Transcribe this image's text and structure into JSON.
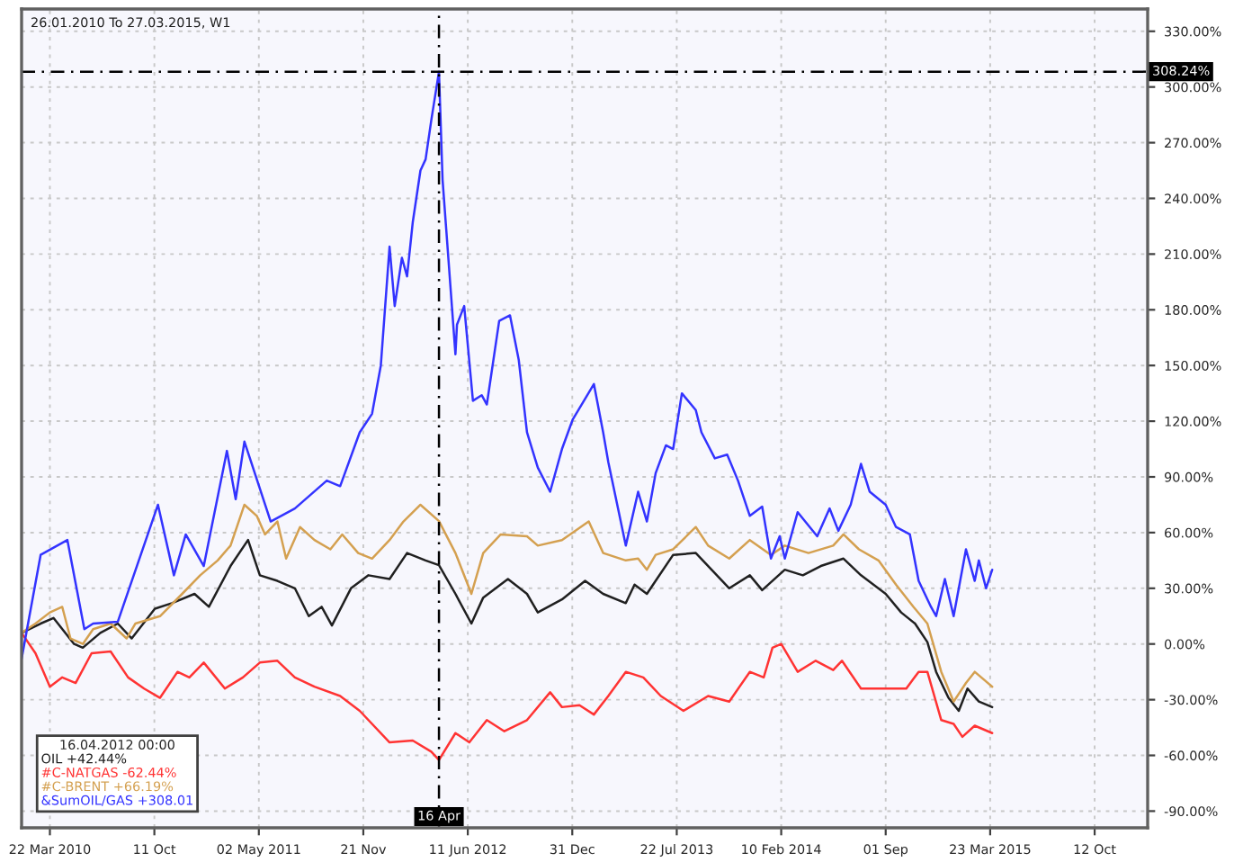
{
  "chart_data": {
    "type": "line",
    "title": "26.01.2010 To 27.03.2015, W1",
    "legend_title": "16.04.2012 00:00",
    "legend": "bottom left",
    "grid": true,
    "xlim": [
      "2010-01-26",
      "2016-01-23"
    ],
    "ylim": [
      -99,
      342
    ],
    "xticks": [
      {
        "value": "2010-03-22",
        "label": "22 Mar 2010"
      },
      {
        "value": "2010-10-11",
        "label": "11 Oct"
      },
      {
        "value": "2011-05-02",
        "label": "02 May 2011"
      },
      {
        "value": "2011-11-21",
        "label": "21 Nov"
      },
      {
        "value": "2012-06-11",
        "label": "11 Jun 2012"
      },
      {
        "value": "2012-12-31",
        "label": "31 Dec"
      },
      {
        "value": "2013-07-22",
        "label": "22 Jul 2013"
      },
      {
        "value": "2014-02-10",
        "label": "10 Feb 2014"
      },
      {
        "value": "2014-09-01",
        "label": "01 Sep"
      },
      {
        "value": "2015-03-23",
        "label": "23 Mar 2015"
      },
      {
        "value": "2015-10-12",
        "label": "12 Oct"
      }
    ],
    "yticks": [
      {
        "value": -90,
        "label": "-90.00%"
      },
      {
        "value": -60,
        "label": "-60.00%"
      },
      {
        "value": -30,
        "label": "-30.00%"
      },
      {
        "value": 0,
        "label": "0.00%"
      },
      {
        "value": 30,
        "label": "30.00%"
      },
      {
        "value": 60,
        "label": "60.00%"
      },
      {
        "value": 90,
        "label": "90.00%"
      },
      {
        "value": 120,
        "label": "120.00%"
      },
      {
        "value": 150,
        "label": "150.00%"
      },
      {
        "value": 180,
        "label": "180.00%"
      },
      {
        "value": 210,
        "label": "210.00%"
      },
      {
        "value": 240,
        "label": "240.00%"
      },
      {
        "value": 270,
        "label": "270.00%"
      },
      {
        "value": 300,
        "label": "300.00%"
      },
      {
        "value": 330,
        "label": "330.00%"
      }
    ],
    "ref_lines": [
      {
        "axis": "x",
        "value": "2012-04-16",
        "label": "16 Apr",
        "color": "#000000",
        "line_style": "dashed"
      },
      {
        "axis": "y",
        "value": 308.24,
        "label": "308.24%",
        "color": "#000000",
        "line_style": "dashed"
      }
    ],
    "series": [
      {
        "name": "OIL +42.44%",
        "color": "#202020",
        "x": [
          "2010-01-26",
          "2010-03-04",
          "2010-03-29",
          "2010-05-08",
          "2010-05-25",
          "2010-06-28",
          "2010-08-01",
          "2010-08-28",
          "2010-10-12",
          "2010-11-14",
          "2010-12-28",
          "2011-01-25",
          "2011-03-08",
          "2011-04-11",
          "2011-05-04",
          "2011-06-07",
          "2011-07-11",
          "2011-08-07",
          "2011-09-01",
          "2011-09-21",
          "2011-10-28",
          "2011-12-01",
          "2012-01-11",
          "2012-02-14",
          "2012-03-21",
          "2012-04-16",
          "2012-05-18",
          "2012-06-18",
          "2012-07-11",
          "2012-08-28",
          "2012-10-04",
          "2012-10-25",
          "2012-12-11",
          "2013-01-25",
          "2013-03-01",
          "2013-04-14",
          "2013-05-01",
          "2013-05-25",
          "2013-06-11",
          "2013-07-15",
          "2013-08-28",
          "2013-11-01",
          "2013-12-11",
          "2014-01-04",
          "2014-02-17",
          "2014-03-24",
          "2014-04-28",
          "2014-06-11",
          "2014-07-15",
          "2014-09-01",
          "2014-10-01",
          "2014-10-28",
          "2014-11-21",
          "2014-12-08",
          "2015-01-01",
          "2015-01-21",
          "2015-02-07",
          "2015-03-01",
          "2015-03-27"
        ],
        "values": [
          6,
          11,
          14,
          0,
          -2,
          6,
          11,
          3,
          19,
          22,
          27,
          20,
          42,
          56,
          37,
          34,
          30,
          15,
          20,
          10,
          30,
          37,
          35,
          49,
          45,
          42.44,
          27,
          11,
          25,
          35,
          27,
          17,
          24,
          34,
          27,
          22,
          32,
          27,
          34,
          48,
          49,
          30,
          37,
          29,
          40,
          37,
          42,
          46,
          37,
          27,
          17,
          11,
          1,
          -15,
          -29,
          -36,
          -24,
          -31,
          -34
        ]
      },
      {
        "name": "#C-NATGAS -62.44%",
        "color": "#ff3333",
        "x": [
          "2010-01-26",
          "2010-02-22",
          "2010-03-22",
          "2010-04-15",
          "2010-05-11",
          "2010-06-11",
          "2010-07-18",
          "2010-08-21",
          "2010-09-21",
          "2010-10-22",
          "2010-11-25",
          "2010-12-18",
          "2011-01-15",
          "2011-02-25",
          "2011-04-01",
          "2011-05-04",
          "2011-06-07",
          "2011-07-11",
          "2011-08-18",
          "2011-10-07",
          "2011-11-14",
          "2012-01-11",
          "2012-02-25",
          "2012-04-01",
          "2012-04-16",
          "2012-05-18",
          "2012-06-14",
          "2012-07-18",
          "2012-08-21",
          "2012-10-04",
          "2012-11-18",
          "2012-12-11",
          "2013-01-14",
          "2013-02-11",
          "2013-03-11",
          "2013-04-14",
          "2013-05-18",
          "2013-06-21",
          "2013-08-04",
          "2013-09-21",
          "2013-11-01",
          "2013-12-11",
          "2014-01-07",
          "2014-01-24",
          "2014-02-10",
          "2014-03-14",
          "2014-04-18",
          "2014-05-22",
          "2014-06-08",
          "2014-07-15",
          "2014-09-01",
          "2014-10-11",
          "2014-11-04",
          "2014-11-21",
          "2014-12-18",
          "2015-01-11",
          "2015-01-28",
          "2015-02-21",
          "2015-03-27"
        ],
        "values": [
          6,
          -5,
          -23,
          -18,
          -21,
          -5,
          -4,
          -18,
          -24,
          -29,
          -15,
          -18,
          -10,
          -24,
          -18,
          -10,
          -9,
          -18,
          -23,
          -28,
          -36,
          -53,
          -52,
          -58,
          -62.44,
          -48,
          -53,
          -41,
          -47,
          -41,
          -26,
          -34,
          -33,
          -38,
          -28,
          -15,
          -18,
          -28,
          -36,
          -28,
          -31,
          -15,
          -18,
          -2,
          0,
          -15,
          -9,
          -14,
          -9,
          -24,
          -24,
          -24,
          -15,
          -15,
          -41,
          -43,
          -50,
          -44,
          -48
        ]
      },
      {
        "name": "#C-BRENT +66.19%",
        "color": "#d4a050",
        "x": [
          "2010-01-26",
          "2010-02-22",
          "2010-03-22",
          "2010-04-15",
          "2010-05-01",
          "2010-05-25",
          "2010-06-14",
          "2010-07-18",
          "2010-08-18",
          "2010-09-04",
          "2010-10-22",
          "2010-12-04",
          "2011-01-08",
          "2011-02-11",
          "2011-03-08",
          "2011-04-04",
          "2011-04-28",
          "2011-05-14",
          "2011-06-07",
          "2011-06-24",
          "2011-07-21",
          "2011-08-18",
          "2011-09-18",
          "2011-10-11",
          "2011-11-11",
          "2011-12-08",
          "2012-01-11",
          "2012-02-07",
          "2012-03-11",
          "2012-04-16",
          "2012-05-18",
          "2012-06-18",
          "2012-07-11",
          "2012-08-14",
          "2012-10-04",
          "2012-10-25",
          "2012-12-11",
          "2013-02-01",
          "2013-03-01",
          "2013-04-14",
          "2013-05-08",
          "2013-05-25",
          "2013-06-11",
          "2013-07-15",
          "2013-08-28",
          "2013-09-21",
          "2013-11-01",
          "2013-12-11",
          "2014-01-21",
          "2014-02-17",
          "2014-04-04",
          "2014-05-22",
          "2014-06-11",
          "2014-07-11",
          "2014-08-18",
          "2014-09-21",
          "2014-10-25",
          "2014-11-21",
          "2014-12-18",
          "2015-01-11",
          "2015-02-04",
          "2015-02-21",
          "2015-03-27"
        ],
        "values": [
          6,
          11,
          17,
          20,
          3,
          0,
          8,
          11,
          3,
          11,
          15,
          27,
          37,
          45,
          53,
          75,
          69,
          59,
          66,
          46,
          63,
          56,
          51,
          59,
          49,
          46,
          56,
          66,
          75,
          66.19,
          49,
          27,
          49,
          59,
          58,
          53,
          56,
          66,
          49,
          45,
          46,
          40,
          48,
          51,
          63,
          53,
          46,
          56,
          48,
          53,
          49,
          53,
          59,
          51,
          45,
          32,
          20,
          11,
          -15,
          -31,
          -21,
          -15,
          -23
        ]
      },
      {
        "name": "&SumOIL/GAS +308.01",
        "color": "#3333ff",
        "x": [
          "2010-01-26",
          "2010-03-04",
          "2010-04-25",
          "2010-05-28",
          "2010-06-14",
          "2010-08-01",
          "2010-10-18",
          "2010-11-18",
          "2010-12-11",
          "2011-01-15",
          "2011-03-01",
          "2011-03-18",
          "2011-04-04",
          "2011-05-25",
          "2011-07-11",
          "2011-09-11",
          "2011-10-07",
          "2011-11-14",
          "2011-12-08",
          "2011-12-25",
          "2012-01-11",
          "2012-01-21",
          "2012-02-04",
          "2012-02-14",
          "2012-02-25",
          "2012-03-11",
          "2012-03-21",
          "2012-04-01",
          "2012-04-16",
          "2012-04-23",
          "2012-05-18",
          "2012-05-21",
          "2012-06-04",
          "2012-06-21",
          "2012-07-08",
          "2012-07-18",
          "2012-08-11",
          "2012-09-01",
          "2012-09-18",
          "2012-10-04",
          "2012-10-25",
          "2012-11-18",
          "2012-12-11",
          "2013-01-01",
          "2013-02-11",
          "2013-03-01",
          "2013-03-11",
          "2013-04-14",
          "2013-05-08",
          "2013-05-25",
          "2013-06-11",
          "2013-07-01",
          "2013-07-15",
          "2013-08-01",
          "2013-08-28",
          "2013-09-08",
          "2013-10-04",
          "2013-10-28",
          "2013-11-18",
          "2013-12-11",
          "2014-01-04",
          "2014-01-21",
          "2014-02-07",
          "2014-02-17",
          "2014-03-14",
          "2014-04-21",
          "2014-05-15",
          "2014-06-01",
          "2014-06-25",
          "2014-07-15",
          "2014-08-01",
          "2014-09-01",
          "2014-09-21",
          "2014-10-18",
          "2014-11-04",
          "2014-11-28",
          "2014-12-08",
          "2014-12-25",
          "2015-01-11",
          "2015-02-04",
          "2015-02-21",
          "2015-03-01",
          "2015-03-15",
          "2015-03-27"
        ],
        "values": [
          -8,
          48,
          56,
          8,
          11,
          12,
          75,
          37,
          59,
          42,
          104,
          78,
          109,
          66,
          73,
          88,
          85,
          114,
          124,
          150,
          214,
          182,
          208,
          198,
          227,
          255,
          261,
          282,
          308.24,
          250,
          156,
          172,
          182,
          131,
          134,
          129,
          174,
          177,
          153,
          114,
          95,
          82,
          105,
          121,
          140,
          114,
          98,
          53,
          82,
          66,
          92,
          107,
          105,
          135,
          126,
          114,
          100,
          102,
          88,
          69,
          74,
          46,
          58,
          46,
          71,
          58,
          73,
          61,
          75,
          97,
          82,
          75,
          63,
          59,
          34,
          20,
          15,
          35,
          15,
          51,
          34,
          45,
          30,
          40
        ]
      }
    ]
  }
}
